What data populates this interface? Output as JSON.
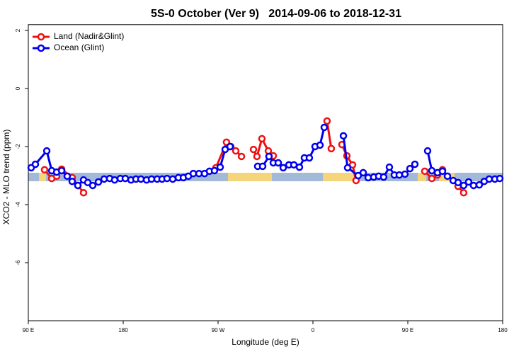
{
  "chart_data": {
    "type": "line",
    "title": "5S-0 October (Ver 9)   2014-09-06 to 2018-12-31",
    "x_label": "Longitude (deg E)",
    "y_label": "XCO2 - MLO trend (ppm)",
    "xlim": [
      90,
      540
    ],
    "ylim": [
      -8,
      2.2
    ],
    "xticks": [
      {
        "value": 90,
        "label": "90 E"
      },
      180,
      {
        "value": 270,
        "label": "90 W"
      },
      {
        "value": 360,
        "label": "0"
      },
      {
        "value": 450,
        "label": "90 E"
      },
      {
        "value": 540,
        "label": "180"
      }
    ],
    "yticks": [
      2,
      0,
      -2,
      -4,
      -6
    ],
    "legend": "top-left",
    "series": [
      {
        "name": "Land (Nadir&Glint)",
        "color": "#ee1111",
        "x": [
          105.4,
          112.2,
          116.9,
          121.6,
          131.6,
          137.0,
          142.4,
          null,
          268.0,
          278.0,
          282.1,
          286.8,
          292.2,
          null,
          303.6,
          306.9,
          311.6,
          317.7,
          322.4,
          null,
          373.4,
          377.4,
          null,
          387.5,
          392.2,
          397.6,
          400.9,
          null,
          466.1,
          472.8,
          478.2,
          482.9,
          null,
          497.7,
          503.0
        ],
        "values": [
          -2.8,
          -3.1,
          -3.02,
          -2.78,
          -3.07,
          -3.34,
          -3.59,
          null,
          -2.73,
          -1.85,
          -2.0,
          -2.15,
          -2.34,
          null,
          -2.1,
          -2.34,
          -1.73,
          -2.15,
          -2.32,
          null,
          -1.12,
          -2.07,
          null,
          -1.93,
          -2.32,
          -2.63,
          -3.17,
          null,
          -2.85,
          -3.1,
          -2.98,
          -2.8,
          null,
          -3.37,
          -3.59
        ]
      },
      {
        "name": "Ocean (Glint)",
        "color": "#0000ee",
        "x": [
          92.7,
          96.7,
          107.5,
          112.2,
          116.9,
          121.6,
          126.9,
          131.6,
          137.0,
          142.4,
          146.4,
          151.1,
          156.5,
          161.9,
          167.2,
          171.9,
          177.3,
          182.0,
          187.4,
          192.1,
          196.8,
          202.2,
          206.9,
          212.2,
          216.9,
          221.6,
          227.0,
          232.4,
          237.1,
          241.8,
          246.5,
          251.9,
          257.2,
          261.9,
          266.6,
          272.0,
          276.7,
          281.4,
          null,
          307.6,
          312.3,
          318.3,
          322.4,
          327.1,
          331.8,
          337.2,
          341.9,
          347.2,
          351.9,
          356.6,
          362.0,
          366.7,
          370.7,
          null,
          388.9,
          392.9,
          402.9,
          407.7,
          412.4,
          417.7,
          422.4,
          427.1,
          432.5,
          437.2,
          441.9,
          447.3,
          452.0,
          456.7,
          null,
          468.8,
          472.8,
          478.2,
          482.9,
          487.6,
          493.0,
          497.7,
          503.0,
          507.7,
          512.4,
          517.8,
          522.5,
          527.2,
          532.6,
          537.3
        ],
        "values": [
          -2.73,
          -2.61,
          -2.15,
          -2.83,
          -2.88,
          -2.83,
          -3.02,
          -3.2,
          -3.34,
          -3.15,
          -3.24,
          -3.34,
          -3.22,
          -3.12,
          -3.1,
          -3.15,
          -3.1,
          -3.1,
          -3.15,
          -3.12,
          -3.12,
          -3.15,
          -3.12,
          -3.12,
          -3.12,
          -3.1,
          -3.12,
          -3.07,
          -3.07,
          -3.02,
          -2.93,
          -2.93,
          -2.93,
          -2.85,
          -2.83,
          -2.71,
          -2.1,
          -2.0,
          null,
          -2.68,
          -2.68,
          -2.34,
          -2.56,
          -2.56,
          -2.73,
          -2.63,
          -2.63,
          -2.71,
          -2.39,
          -2.39,
          -2.0,
          -1.95,
          -1.34,
          null,
          -1.63,
          -2.73,
          -3.0,
          -2.9,
          -3.07,
          -3.05,
          -3.02,
          -3.05,
          -2.71,
          -2.98,
          -2.98,
          -2.95,
          -2.76,
          -2.61,
          null,
          -2.15,
          -2.83,
          -2.9,
          -2.85,
          -3.02,
          -3.17,
          -3.24,
          -3.34,
          -3.22,
          -3.34,
          -3.32,
          -3.2,
          -3.12,
          -3.12,
          -3.1
        ]
      }
    ]
  }
}
